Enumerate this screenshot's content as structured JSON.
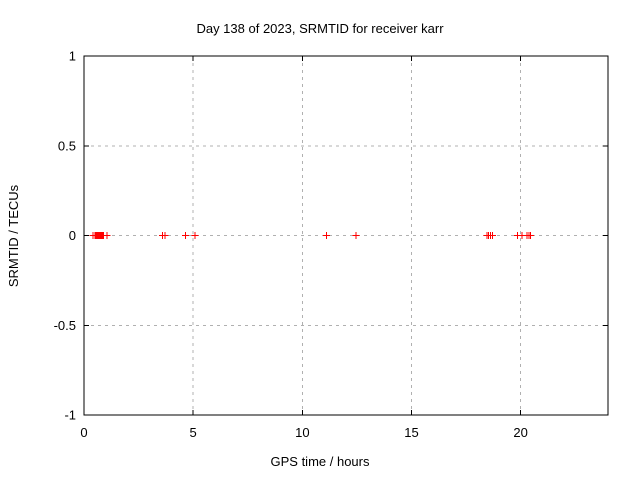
{
  "chart_data": {
    "type": "scatter",
    "title": "Day 138 of 2023, SRMTID for receiver karr",
    "xlabel": "GPS time / hours",
    "ylabel": "SRMTID / TECUs",
    "xlim": [
      0,
      24
    ],
    "ylim": [
      -1,
      1
    ],
    "xticks": [
      0,
      5,
      10,
      15,
      20
    ],
    "xtick_labels": [
      "0",
      "5",
      "10",
      "15",
      "20"
    ],
    "yticks": [
      -1,
      -0.5,
      0,
      0.5,
      1
    ],
    "ytick_labels": [
      "-1",
      "-0.5",
      "0",
      "0.5",
      "1"
    ],
    "grid": true,
    "legend_position": "none",
    "series": [
      {
        "name": "SRMTID",
        "marker": "plus",
        "color": "#ff0000",
        "x": [
          0.42,
          0.5,
          0.54,
          0.58,
          0.62,
          0.66,
          0.7,
          0.74,
          0.78,
          0.82,
          0.86,
          0.9,
          1.05,
          3.6,
          3.72,
          4.65,
          5.08,
          11.1,
          12.45,
          18.45,
          18.52,
          18.62,
          18.7,
          19.85,
          20.05,
          20.28,
          20.38,
          20.45
        ],
        "y": [
          0,
          0,
          0,
          0,
          0,
          0,
          0,
          0,
          0,
          0,
          0,
          0,
          0,
          0,
          0,
          0,
          0,
          0,
          0,
          0,
          0,
          0,
          0,
          0,
          0,
          0,
          0,
          0
        ]
      }
    ]
  },
  "colors": {
    "marker": "#ff0000",
    "grid": "#b0b0b0",
    "border": "#000000",
    "background": "#ffffff"
  }
}
